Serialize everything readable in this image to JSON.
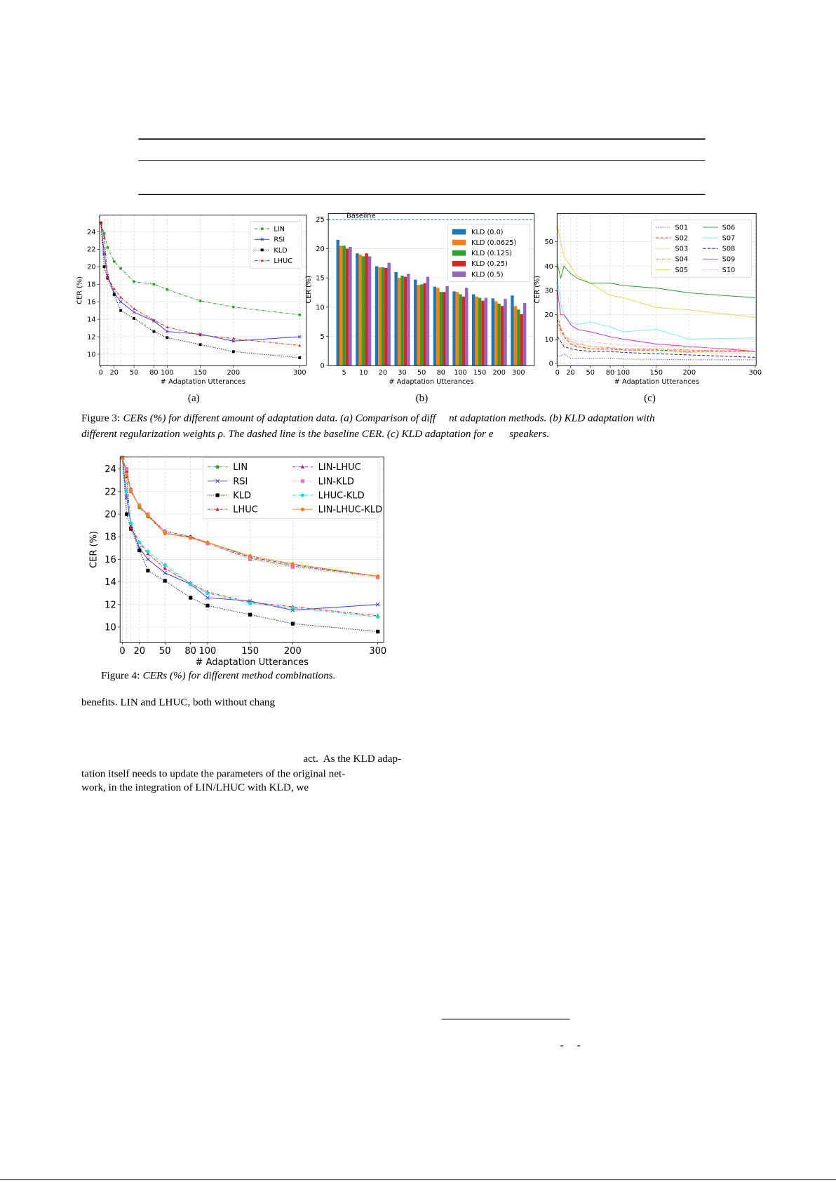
{
  "chart_data": [
    {
      "type": "line",
      "xlabel": "# Adaptation Utterances",
      "ylabel": "CER (%)",
      "x": [
        0,
        5,
        10,
        20,
        30,
        50,
        80,
        100,
        150,
        200,
        300
      ],
      "xlim": [
        -2,
        310
      ],
      "xticks": [
        0,
        20,
        50,
        80,
        100,
        150,
        200,
        300
      ],
      "ylim": [
        8.7,
        25.9
      ],
      "yticks": [
        10,
        12,
        14,
        16,
        18,
        20,
        22,
        24
      ],
      "grid": true,
      "legend": "upper right",
      "legend_columns": 1,
      "series": [
        {
          "name": "LIN",
          "color": "#2ca02c",
          "dash": "dashdot",
          "marker": "circle",
          "values": [
            25,
            23.8,
            22.2,
            20.6,
            19.8,
            18.3,
            18.0,
            17.4,
            16.1,
            15.4,
            14.5
          ]
        },
        {
          "name": "RSI",
          "color": "#3b3bd6",
          "dash": "solid",
          "marker": "x",
          "values": [
            25,
            21.5,
            19.0,
            17.0,
            16.0,
            14.8,
            13.8,
            12.6,
            12.3,
            11.5,
            12.0
          ]
        },
        {
          "name": "KLD",
          "color": "#000000",
          "dash": "dotted",
          "marker": "square",
          "values": [
            25,
            20.0,
            18.7,
            16.8,
            15.0,
            14.1,
            12.6,
            11.9,
            11.1,
            10.3,
            9.6
          ]
        },
        {
          "name": "LHUC",
          "color": "#d62728",
          "dash": "dashdot",
          "marker": "triangle",
          "values": [
            25,
            23.3,
            18.8,
            17.5,
            16.5,
            15.2,
            13.9,
            13.1,
            12.2,
            11.8,
            11.0
          ]
        }
      ]
    },
    {
      "type": "bar",
      "xlabel": "# Adaptation Utterances",
      "ylabel": "CER (%)",
      "categories": [
        "5",
        "10",
        "20",
        "30",
        "50",
        "80",
        "100",
        "150",
        "200",
        "300"
      ],
      "ylim": [
        0,
        26
      ],
      "yticks": [
        0,
        5,
        10,
        15,
        20,
        25
      ],
      "grid": true,
      "legend": "upper right",
      "legend_columns": 1,
      "baseline": {
        "label": "Baseline",
        "value": 25,
        "color": "#1f77b4"
      },
      "series": [
        {
          "name": "KLD (0.0)",
          "color": "#1f77b4",
          "values": [
            21.5,
            19.2,
            17.0,
            16.0,
            14.7,
            13.5,
            12.7,
            12.2,
            11.5,
            12.0
          ]
        },
        {
          "name": "KLD (0.0625)",
          "color": "#ff7f0e",
          "values": [
            20.5,
            19.0,
            16.8,
            15.0,
            13.8,
            13.3,
            12.6,
            11.8,
            11.0,
            10.2
          ]
        },
        {
          "name": "KLD (0.125)",
          "color": "#2ca02c",
          "values": [
            20.5,
            18.7,
            16.8,
            15.4,
            13.9,
            12.6,
            12.2,
            11.6,
            10.6,
            9.6
          ]
        },
        {
          "name": "KLD (0.25)",
          "color": "#d62728",
          "values": [
            20.0,
            19.2,
            16.7,
            15.2,
            14.1,
            12.6,
            11.8,
            11.1,
            10.2,
            8.8
          ]
        },
        {
          "name": "KLD (0.5)",
          "color": "#9467bd",
          "values": [
            20.3,
            18.7,
            17.6,
            15.7,
            15.2,
            13.6,
            13.3,
            11.6,
            11.4,
            10.7
          ]
        }
      ]
    },
    {
      "type": "line",
      "xlabel": "# Adaptation Utterances",
      "ylabel": "CER (%)",
      "x": [
        0,
        5,
        10,
        20,
        30,
        50,
        80,
        100,
        150,
        200,
        300
      ],
      "xlim": [
        -0.5,
        301.5
      ],
      "xticks": [
        0,
        20,
        50,
        80,
        100,
        150,
        200,
        300
      ],
      "ylim": [
        -0.9,
        61.6
      ],
      "yticks": [
        0,
        10,
        20,
        30,
        40,
        50
      ],
      "grid": true,
      "legend": "upper right",
      "legend_columns": 2,
      "series": [
        {
          "name": "S01",
          "color": "#3b4cc0",
          "dash": "dotted",
          "values": [
            3,
            3,
            4,
            2,
            2,
            2,
            2,
            1.8,
            1.7,
            1.5,
            1.5
          ]
        },
        {
          "name": "S02",
          "color": "#d62728",
          "dash": "dashed",
          "values": [
            18,
            14,
            11,
            8,
            7,
            6,
            6,
            5.5,
            5.5,
            5,
            5
          ]
        },
        {
          "name": "S03",
          "color": "#bcbd22",
          "dash": "dotted",
          "values": [
            15,
            12,
            9,
            7,
            6.5,
            6,
            5.5,
            5.5,
            5,
            4.5,
            4
          ]
        },
        {
          "name": "S04",
          "color": "#ff7f0e",
          "dash": "dashdot",
          "values": [
            20,
            15,
            12,
            9,
            8,
            7,
            6.5,
            6,
            6,
            5.5,
            5
          ]
        },
        {
          "name": "S05",
          "color": "#e8d44d",
          "dash": "solid",
          "values": [
            57,
            50,
            44,
            40,
            36,
            33,
            28,
            27,
            23,
            22,
            19
          ]
        },
        {
          "name": "S06",
          "color": "#2ca02c",
          "dash": "solid",
          "values": [
            41,
            35,
            40,
            37,
            35,
            33,
            33,
            32,
            31,
            29,
            27
          ]
        },
        {
          "name": "S07",
          "color": "#7fe8e8",
          "dash": "solid",
          "values": [
            35,
            25,
            20,
            17,
            16,
            17,
            15,
            13,
            14,
            10,
            10.5
          ]
        },
        {
          "name": "S08",
          "color": "#1a237e",
          "dash": "dashed",
          "values": [
            11,
            9,
            7,
            6,
            5.5,
            5,
            5,
            4.5,
            4,
            3.5,
            2.5
          ]
        },
        {
          "name": "S09",
          "color": "#d62fc8",
          "dash": "solid",
          "values": [
            30,
            20,
            20,
            16,
            14,
            13,
            11,
            10,
            8,
            7,
            5
          ]
        },
        {
          "name": "S10",
          "color": "#ffb6c1",
          "dash": "dashdot",
          "values": [
            16,
            13,
            11,
            10,
            9,
            9,
            8,
            7.5,
            7,
            6.5,
            6
          ]
        }
      ]
    },
    {
      "type": "line",
      "xlabel": "# Adaptation Utterances",
      "ylabel": "CER (%)",
      "x": [
        0,
        5,
        10,
        20,
        30,
        50,
        80,
        100,
        150,
        200,
        300
      ],
      "xlim": [
        -2.7,
        307
      ],
      "xticks": [
        0,
        20,
        50,
        80,
        100,
        150,
        200,
        300
      ],
      "ylim": [
        8.65,
        25.08
      ],
      "yticks": [
        10,
        12,
        14,
        16,
        18,
        20,
        22,
        24
      ],
      "grid": true,
      "legend": "upper right",
      "legend_columns": 2,
      "series": [
        {
          "name": "LIN",
          "color": "#2ca02c",
          "dash": "dashdot",
          "marker": "circle",
          "values": [
            25,
            23.8,
            22.2,
            20.6,
            19.8,
            18.3,
            18.0,
            17.4,
            16.1,
            15.4,
            14.5
          ]
        },
        {
          "name": "RSI",
          "color": "#3b3bd6",
          "dash": "solid",
          "marker": "x",
          "values": [
            25,
            21.5,
            19.0,
            17.0,
            16.0,
            14.8,
            13.8,
            12.6,
            12.3,
            11.5,
            12.0
          ]
        },
        {
          "name": "KLD",
          "color": "#000000",
          "dash": "dotted",
          "marker": "square",
          "values": [
            25,
            20.0,
            18.7,
            16.8,
            15.0,
            14.1,
            12.6,
            11.9,
            11.1,
            10.3,
            9.6
          ]
        },
        {
          "name": "LHUC",
          "color": "#d62728",
          "dash": "dashdot",
          "marker": "triangle",
          "values": [
            25,
            23.3,
            18.8,
            17.5,
            16.5,
            15.2,
            13.9,
            13.1,
            12.2,
            11.8,
            11.0
          ]
        },
        {
          "name": "LIN-LHUC",
          "color": "#9b1f8f",
          "dash": "dashdot",
          "marker": "triangle",
          "values": [
            25,
            23.8,
            22.0,
            20.7,
            19.9,
            18.5,
            18.0,
            17.5,
            16.2,
            15.5,
            14.5
          ]
        },
        {
          "name": "LIN-KLD",
          "color": "#e377c2",
          "dash": "dotted",
          "marker": "square",
          "values": [
            25,
            24.0,
            22.1,
            20.8,
            20.0,
            18.4,
            17.9,
            17.4,
            16.0,
            15.3,
            14.4
          ]
        },
        {
          "name": "LHUC-KLD",
          "color": "#17d8e3",
          "dash": "dashdot",
          "marker": "circle",
          "values": [
            25,
            22.0,
            19.2,
            17.5,
            16.7,
            15.5,
            13.8,
            13.0,
            12.1,
            11.7,
            10.9
          ]
        },
        {
          "name": "LIN-LHUC-KLD",
          "color": "#ff7f0e",
          "dash": "solid",
          "marker": "circle",
          "values": [
            25,
            23.5,
            22.0,
            20.7,
            19.9,
            18.3,
            17.9,
            17.5,
            16.3,
            15.6,
            14.5
          ]
        }
      ]
    }
  ],
  "figure3": {
    "panels": [
      "(a)",
      "(b)",
      "(c)"
    ],
    "label": "Figure 3:",
    "caption": [
      "CERs (%) for different amount of adaptation data. (a) Comparison of diff     nt adaptation methods. (b) KLD adaptation with",
      "different regularization weights ρ. The dashed line is the baseline CER. (c) KLD adaptation for e      speakers."
    ]
  },
  "figure4": {
    "label": "Figure 4:",
    "caption": "CERs (%) for different method combinations."
  },
  "body": [
    "benefits. LIN and LHUC, both without chang",
    "act.  As the KLD adap-",
    "tation itself needs to update the parameters of the original net-",
    "work, in the integration of LIN/LHUC with KLD, we"
  ],
  "footnote": "-     -"
}
